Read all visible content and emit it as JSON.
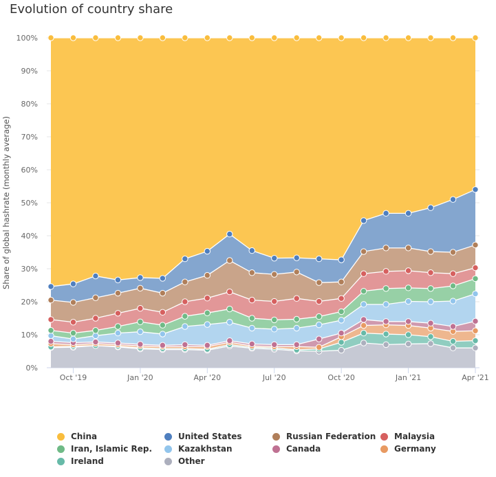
{
  "chart_data": {
    "type": "area",
    "stacking": "percent",
    "title": "Evolution of country share",
    "xlabel": "",
    "ylabel": "Share of global hashrate (monthly average)",
    "ylim": [
      0,
      100
    ],
    "yticks": [
      "0%",
      "10%",
      "20%",
      "30%",
      "40%",
      "50%",
      "60%",
      "70%",
      "80%",
      "90%",
      "100%"
    ],
    "x": [
      "2019-09",
      "2019-10",
      "2019-11",
      "2019-12",
      "2020-01",
      "2020-02",
      "2020-03",
      "2020-04",
      "2020-05",
      "2020-06",
      "2020-07",
      "2020-08",
      "2020-09",
      "2020-10",
      "2020-11",
      "2020-12",
      "2021-01",
      "2021-02",
      "2021-03",
      "2021-04"
    ],
    "xticks": [
      {
        "month": "2019-10",
        "label": "Oct '19"
      },
      {
        "month": "2020-01",
        "label": "Jan '20"
      },
      {
        "month": "2020-04",
        "label": "Apr '20"
      },
      {
        "month": "2020-07",
        "label": "Jul '20"
      },
      {
        "month": "2020-10",
        "label": "Oct '20"
      },
      {
        "month": "2021-01",
        "label": "Jan '21"
      },
      {
        "month": "2021-04",
        "label": "Apr '21"
      }
    ],
    "grid": true,
    "legend_position": "bottom",
    "series": [
      {
        "name": "China",
        "color": "#f9bd3d",
        "fill": "#fcc652",
        "values": [
          75.4,
          74.6,
          72.2,
          73.4,
          72.7,
          72.9,
          67,
          64.7,
          59.5,
          64.5,
          66.8,
          66.7,
          67,
          67.3,
          55.4,
          53.2,
          53.2,
          51.5,
          49,
          46
        ]
      },
      {
        "name": "United States",
        "color": "#4f7fbf",
        "fill": "#84a6cf",
        "values": [
          4.1,
          5.6,
          6.6,
          4,
          3.2,
          4.5,
          7,
          7.3,
          8,
          6.7,
          4.9,
          4.3,
          7.2,
          6.7,
          9.4,
          10.5,
          10.5,
          13.3,
          16,
          16.8
        ]
      },
      {
        "name": "Russian Federation",
        "color": "#b07f5a",
        "fill": "#c9a48a",
        "values": [
          5.9,
          6,
          6.2,
          6.1,
          6.1,
          5.8,
          6,
          6.9,
          9.5,
          8.3,
          8.2,
          8,
          5.7,
          5,
          6.7,
          7.1,
          6.9,
          6.4,
          6.5,
          6.9
        ]
      },
      {
        "name": "Malaysia",
        "color": "#d6605f",
        "fill": "#e29798",
        "values": [
          3.3,
          3.3,
          3.7,
          4,
          4.1,
          3.9,
          4.4,
          4.5,
          5.2,
          5.5,
          5.6,
          6.3,
          4.6,
          4,
          5.3,
          5.2,
          5.2,
          4.8,
          3.7,
          3.3
        ]
      },
      {
        "name": "Iran, Islamic Rep.",
        "color": "#6fba86",
        "fill": "#97d0a6",
        "values": [
          1.6,
          1.8,
          1.6,
          2,
          3,
          2.7,
          3.1,
          3.5,
          4,
          3,
          2.8,
          2.7,
          2.5,
          2.6,
          4,
          4.8,
          4.1,
          4,
          4.6,
          4.6
        ]
      },
      {
        "name": "Kazakhstan",
        "color": "#92c5ec",
        "fill": "#b2d5ef",
        "values": [
          1.7,
          1.1,
          1.9,
          3,
          3.8,
          3.4,
          5.5,
          6.3,
          5.6,
          4.8,
          4.7,
          5,
          4.3,
          3.9,
          4.6,
          5.2,
          6.1,
          6.5,
          7.7,
          8.3
        ]
      },
      {
        "name": "Canada",
        "color": "#bf7192",
        "fill": "#cf99ae",
        "values": [
          0.7,
          0.6,
          0.5,
          0.5,
          0.5,
          0.4,
          0.6,
          0.4,
          0.5,
          0.6,
          0.6,
          0.6,
          2.5,
          1.1,
          1.8,
          1,
          1.2,
          1.5,
          1.5,
          2.9
        ]
      },
      {
        "name": "Germany",
        "color": "#e89a62",
        "fill": "#eeb78f",
        "values": [
          1,
          0.5,
          0.6,
          0.5,
          0.6,
          0.6,
          0.6,
          0.8,
          0.7,
          0.4,
          0.4,
          1,
          0.5,
          1.7,
          2.3,
          2.8,
          2.8,
          2.6,
          3,
          3
        ]
      },
      {
        "name": "Ireland",
        "color": "#67baa8",
        "fill": "#90cdc0",
        "values": [
          0.2,
          0.3,
          0,
          0.2,
          0.3,
          0.3,
          0.3,
          0.3,
          0.4,
          0.3,
          0.4,
          0.3,
          0.7,
          2.4,
          3,
          3.2,
          2.8,
          2.1,
          2,
          2.2
        ]
      },
      {
        "name": "Other",
        "color": "#acafbd",
        "fill": "#c6c9d4",
        "values": [
          6.1,
          6.2,
          6.7,
          6.3,
          5.7,
          5.5,
          5.5,
          5.3,
          6.6,
          5.9,
          5.6,
          5.1,
          5,
          5.3,
          7.5,
          7,
          7.2,
          7.3,
          6,
          6
        ]
      }
    ]
  }
}
